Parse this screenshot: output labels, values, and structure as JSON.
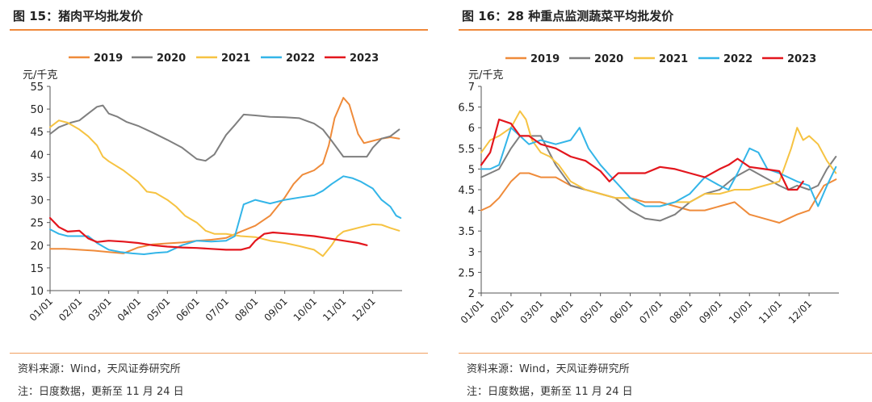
{
  "colors": {
    "2019": "#ef8b3a",
    "2020": "#7f7f7f",
    "2021": "#f6c342",
    "2022": "#33b5e8",
    "2023": "#e3161d",
    "accent": "#f0883a"
  },
  "chart_data": [
    {
      "type": "line",
      "title": "图 15：猪肉平均批发价",
      "ylabel": "元/千克",
      "ylim": [
        10,
        55
      ],
      "yticks": [
        "10",
        "15",
        "20",
        "25",
        "30",
        "35",
        "40",
        "45",
        "50",
        "55"
      ],
      "categories": [
        "01/01",
        "02/01",
        "03/01",
        "04/01",
        "05/01",
        "06/01",
        "07/01",
        "08/01",
        "09/01",
        "10/01",
        "11/01",
        "12/01"
      ],
      "legend_position": "top",
      "grid": false,
      "series": [
        {
          "name": "2019",
          "x": [
            0,
            0.5,
            1,
            1.5,
            2,
            2.5,
            3,
            3.5,
            4,
            4.5,
            5,
            5.5,
            6,
            6.5,
            7,
            7.5,
            8,
            8.3,
            8.6,
            9,
            9.3,
            9.5,
            9.7,
            10,
            10.2,
            10.5,
            10.7,
            11,
            11.3,
            11.6,
            11.9
          ],
          "y": [
            19.2,
            19.2,
            19.0,
            18.8,
            18.5,
            18.2,
            19.5,
            20.2,
            20.4,
            20.6,
            21.0,
            21.2,
            21.6,
            23.0,
            24.3,
            26.5,
            30.5,
            33.5,
            35.5,
            36.5,
            38.0,
            42.0,
            48.0,
            52.5,
            51.0,
            44.5,
            42.5,
            43.0,
            43.5,
            43.8,
            43.5
          ]
        },
        {
          "name": "2020",
          "x": [
            0,
            0.3,
            0.7,
            1,
            1.3,
            1.6,
            1.8,
            2,
            2.3,
            2.6,
            3,
            3.5,
            4,
            4.5,
            5,
            5.3,
            5.6,
            6,
            6.3,
            6.6,
            7,
            7.5,
            8,
            8.5,
            9,
            9.3,
            9.6,
            10,
            10.4,
            10.8,
            11,
            11.3,
            11.6,
            11.9
          ],
          "y": [
            44.5,
            46.0,
            47.0,
            47.5,
            49.0,
            50.5,
            50.8,
            49.0,
            48.3,
            47.2,
            46.3,
            44.8,
            43.2,
            41.5,
            39.0,
            38.6,
            40.0,
            44.3,
            46.5,
            48.8,
            48.6,
            48.3,
            48.2,
            48.0,
            46.8,
            45.5,
            43.0,
            39.5,
            39.5,
            39.5,
            41.5,
            43.5,
            44.0,
            45.5
          ]
        },
        {
          "name": "2021",
          "x": [
            0,
            0.3,
            0.6,
            1,
            1.3,
            1.6,
            1.8,
            2,
            2.5,
            3,
            3.3,
            3.6,
            4,
            4.3,
            4.6,
            5,
            5.3,
            5.6,
            6,
            6.5,
            7,
            7.5,
            8,
            8.5,
            9,
            9.3,
            9.6,
            9.8,
            10,
            10.3,
            10.6,
            11,
            11.3,
            11.6,
            11.9
          ],
          "y": [
            46.0,
            47.5,
            47.0,
            45.5,
            44.0,
            42.0,
            39.5,
            38.5,
            36.5,
            34.0,
            31.8,
            31.5,
            30.0,
            28.5,
            26.5,
            25.0,
            23.2,
            22.5,
            22.5,
            22.0,
            21.8,
            21.0,
            20.5,
            19.8,
            19.0,
            17.6,
            20.0,
            22.0,
            23.0,
            23.5,
            24.0,
            24.6,
            24.5,
            23.8,
            23.2
          ]
        },
        {
          "name": "2022",
          "x": [
            0,
            0.3,
            0.6,
            1,
            1.3,
            1.6,
            2,
            2.4,
            2.8,
            3.2,
            3.6,
            4,
            4.5,
            5,
            5.5,
            6,
            6.3,
            6.6,
            7,
            7.5,
            8,
            8.5,
            9,
            9.3,
            9.6,
            10,
            10.3,
            10.6,
            11,
            11.3,
            11.6,
            11.8,
            11.95
          ],
          "y": [
            23.5,
            22.5,
            22.0,
            22.0,
            22.0,
            20.5,
            19.0,
            18.5,
            18.2,
            18.0,
            18.3,
            18.5,
            20.0,
            21.0,
            20.8,
            21.0,
            22.0,
            29.0,
            30.0,
            29.2,
            30.0,
            30.5,
            31.0,
            32.0,
            33.5,
            35.2,
            34.8,
            34.0,
            32.5,
            30.0,
            28.5,
            26.5,
            26.0
          ]
        },
        {
          "name": "2023",
          "x": [
            0,
            0.3,
            0.6,
            1,
            1.3,
            1.6,
            2,
            2.5,
            3,
            3.5,
            4,
            4.5,
            5,
            5.5,
            6,
            6.5,
            6.8,
            7,
            7.3,
            7.6,
            8,
            8.5,
            9,
            9.5,
            10,
            10.5,
            10.8
          ],
          "y": [
            26.0,
            24.0,
            23.0,
            23.2,
            21.5,
            20.7,
            21.0,
            20.8,
            20.5,
            20.0,
            19.7,
            19.5,
            19.4,
            19.2,
            19.0,
            19.0,
            19.5,
            21.0,
            22.5,
            22.8,
            22.6,
            22.3,
            22.0,
            21.5,
            21.0,
            20.5,
            20.0
          ]
        }
      ]
    },
    {
      "type": "line",
      "title": "图 16：28 种重点监测蔬菜平均批发价",
      "ylabel": "元/千克",
      "ylim": [
        2,
        7
      ],
      "yticks": [
        "2",
        "2.5",
        "3",
        "3.5",
        "4",
        "4.5",
        "5",
        "5.5",
        "6",
        "6.5",
        "7"
      ],
      "categories": [
        "01/01",
        "02/01",
        "03/01",
        "04/01",
        "05/01",
        "06/01",
        "07/01",
        "08/01",
        "09/01",
        "10/01",
        "11/01",
        "12/01"
      ],
      "legend_position": "top",
      "grid": false,
      "series": [
        {
          "name": "2019",
          "x": [
            0,
            0.3,
            0.6,
            1,
            1.3,
            1.6,
            2,
            2.5,
            3,
            3.5,
            4,
            4.5,
            5,
            5.5,
            6,
            6.5,
            7,
            7.5,
            8,
            8.5,
            9,
            9.5,
            10,
            10.3,
            10.6,
            11,
            11.5,
            11.9
          ],
          "y": [
            4.0,
            4.1,
            4.3,
            4.7,
            4.9,
            4.9,
            4.8,
            4.8,
            4.6,
            4.5,
            4.4,
            4.3,
            4.3,
            4.2,
            4.2,
            4.1,
            4.0,
            4.0,
            4.1,
            4.2,
            3.9,
            3.8,
            3.7,
            3.8,
            3.9,
            4.0,
            4.6,
            4.75
          ]
        },
        {
          "name": "2020",
          "x": [
            0,
            0.3,
            0.6,
            1,
            1.3,
            1.6,
            2,
            2.5,
            3,
            3.5,
            4,
            4.5,
            5,
            5.5,
            6,
            6.5,
            7,
            7.5,
            8,
            8.5,
            9,
            9.5,
            10,
            10.3,
            10.6,
            11,
            11.3,
            11.6,
            11.9
          ],
          "y": [
            4.8,
            4.9,
            5.0,
            5.5,
            5.8,
            5.8,
            5.8,
            5.1,
            4.6,
            4.5,
            4.4,
            4.3,
            4.0,
            3.8,
            3.75,
            3.9,
            4.2,
            4.4,
            4.5,
            4.8,
            5.0,
            4.8,
            4.6,
            4.5,
            4.6,
            4.5,
            4.6,
            5.0,
            5.3
          ]
        },
        {
          "name": "2021",
          "x": [
            0,
            0.3,
            0.6,
            1,
            1.3,
            1.5,
            1.7,
            2,
            2.3,
            2.6,
            3,
            3.5,
            4,
            4.5,
            5,
            5.5,
            6,
            6.5,
            7,
            7.5,
            8,
            8.5,
            9,
            9.5,
            10,
            10.2,
            10.4,
            10.6,
            10.8,
            11,
            11.3,
            11.6,
            11.9
          ],
          "y": [
            5.4,
            5.7,
            5.8,
            6.0,
            6.4,
            6.2,
            5.7,
            5.4,
            5.3,
            5.1,
            4.7,
            4.5,
            4.4,
            4.3,
            4.3,
            4.1,
            4.1,
            4.2,
            4.2,
            4.4,
            4.4,
            4.5,
            4.5,
            4.6,
            4.7,
            5.1,
            5.5,
            6.0,
            5.7,
            5.8,
            5.6,
            5.2,
            4.9
          ]
        },
        {
          "name": "2022",
          "x": [
            0,
            0.3,
            0.6,
            1,
            1.3,
            1.6,
            2,
            2.5,
            3,
            3.3,
            3.6,
            4,
            4.5,
            5,
            5.5,
            6,
            6.5,
            7,
            7.5,
            8,
            8.3,
            8.6,
            9,
            9.3,
            9.6,
            10,
            10.3,
            10.6,
            11,
            11.3,
            11.6,
            11.9
          ],
          "y": [
            5.0,
            5.0,
            5.1,
            6.0,
            5.8,
            5.6,
            5.7,
            5.6,
            5.7,
            6.0,
            5.5,
            5.1,
            4.7,
            4.3,
            4.1,
            4.1,
            4.2,
            4.4,
            4.8,
            4.6,
            4.5,
            4.9,
            5.5,
            5.4,
            5.0,
            4.9,
            4.8,
            4.7,
            4.6,
            4.1,
            4.6,
            5.05
          ]
        },
        {
          "name": "2023",
          "x": [
            0,
            0.3,
            0.6,
            1,
            1.3,
            1.6,
            2,
            2.5,
            3,
            3.5,
            4,
            4.3,
            4.6,
            5,
            5.5,
            6,
            6.5,
            7,
            7.5,
            8,
            8.3,
            8.6,
            9,
            9.5,
            10,
            10.3,
            10.6,
            10.8
          ],
          "y": [
            5.1,
            5.4,
            6.2,
            6.1,
            5.8,
            5.8,
            5.6,
            5.5,
            5.3,
            5.2,
            4.95,
            4.7,
            4.9,
            4.9,
            4.9,
            5.05,
            5.0,
            4.9,
            4.8,
            5.0,
            5.1,
            5.25,
            5.05,
            5.0,
            4.95,
            4.5,
            4.5,
            4.7
          ]
        }
      ]
    }
  ],
  "footer": {
    "left_source": "资料来源：Wind，天风证券研究所",
    "left_note": "注：日度数据，更新至 11 月 24 日",
    "right_source": "资料来源：Wind，天风证券研究所",
    "right_note": "注：日度数据，更新至 11 月 24 日"
  }
}
